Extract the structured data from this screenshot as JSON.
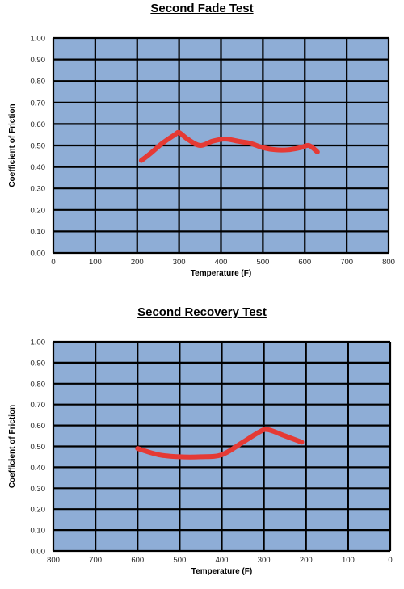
{
  "chart_data": [
    {
      "type": "line",
      "title": "Second Fade Test",
      "xlabel": "Temperature (F)",
      "ylabel": "Coefficient of Friction",
      "xlim": [
        0,
        800
      ],
      "ylim": [
        0,
        1
      ],
      "x_reversed": false,
      "grid": true,
      "x_ticks": [
        "0",
        "100",
        "200",
        "300",
        "400",
        "500",
        "600",
        "700",
        "800"
      ],
      "y_ticks": [
        "0.00",
        "0.10",
        "0.20",
        "0.30",
        "0.40",
        "0.50",
        "0.60",
        "0.70",
        "0.80",
        "0.90",
        "1.00"
      ],
      "colors": {
        "plot_background": "#8eadd6",
        "grid": "#000000",
        "line": "#e53a35"
      },
      "series": [
        {
          "x": [
            210,
            230,
            260,
            290,
            300,
            320,
            350,
            380,
            410,
            440,
            470,
            500,
            530,
            560,
            590,
            610,
            630
          ],
          "y": [
            0.43,
            0.46,
            0.51,
            0.55,
            0.56,
            0.53,
            0.5,
            0.52,
            0.53,
            0.52,
            0.51,
            0.49,
            0.48,
            0.48,
            0.49,
            0.5,
            0.47
          ]
        }
      ]
    },
    {
      "type": "line",
      "title": "Second Recovery Test",
      "xlabel": "Temperature (F)",
      "ylabel": "Coefficient of Friction",
      "xlim": [
        800,
        0
      ],
      "ylim": [
        0,
        1
      ],
      "x_reversed": true,
      "grid": true,
      "x_ticks": [
        "800",
        "700",
        "600",
        "500",
        "400",
        "300",
        "200",
        "100",
        "0"
      ],
      "y_ticks": [
        "0.00",
        "0.10",
        "0.20",
        "0.30",
        "0.40",
        "0.50",
        "0.60",
        "0.70",
        "0.80",
        "0.90",
        "1.00"
      ],
      "colors": {
        "plot_background": "#8eadd6",
        "grid": "#000000",
        "line": "#e53a35"
      },
      "series": [
        {
          "x": [
            600,
            550,
            500,
            450,
            400,
            350,
            310,
            290,
            250,
            210
          ],
          "y": [
            0.49,
            0.46,
            0.45,
            0.45,
            0.46,
            0.52,
            0.57,
            0.58,
            0.55,
            0.52
          ]
        }
      ]
    }
  ]
}
